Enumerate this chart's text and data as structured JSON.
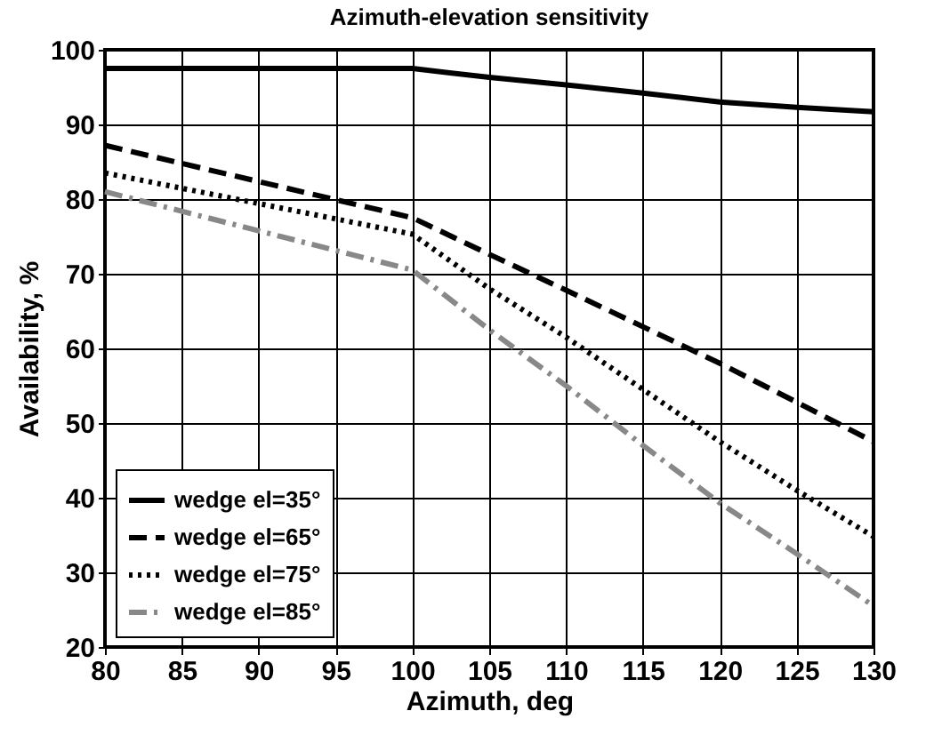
{
  "chart_data": {
    "type": "line",
    "title": "Azimuth-elevation sensitivity",
    "xlabel": "Azimuth, deg",
    "ylabel": "Availability, %",
    "x": [
      80,
      100,
      105,
      110,
      115,
      120,
      125,
      130
    ],
    "series": [
      {
        "name": "wedge el=35°",
        "color": "#000000",
        "line_style": "solid",
        "values": [
          97.5,
          97.5,
          96.3,
          95.3,
          94.2,
          93,
          92.3,
          91.7
        ]
      },
      {
        "name": "wedge el=65°",
        "color": "#000000",
        "line_style": "dashed",
        "values": [
          87.2,
          77.5,
          72.6,
          67.8,
          62.9,
          58,
          52.8,
          47.5
        ]
      },
      {
        "name": "wedge el=75°",
        "color": "#000000",
        "line_style": "dotted",
        "values": [
          83.5,
          75.3,
          68,
          61.5,
          54.5,
          47.5,
          41,
          34.8
        ]
      },
      {
        "name": "wedge el=85°",
        "color": "#888888",
        "line_style": "dashdot",
        "values": [
          81,
          70.5,
          62.5,
          55,
          47,
          39.3,
          32.5,
          25.5
        ]
      }
    ],
    "xlim": [
      80,
      130
    ],
    "xticks": [
      80,
      85,
      90,
      95,
      100,
      105,
      110,
      115,
      120,
      125,
      130
    ],
    "ylim": [
      20,
      100
    ],
    "yticks": [
      20,
      30,
      40,
      50,
      60,
      70,
      80,
      90,
      100
    ],
    "grid": true,
    "legend": "bottom left",
    "marker": "none"
  }
}
